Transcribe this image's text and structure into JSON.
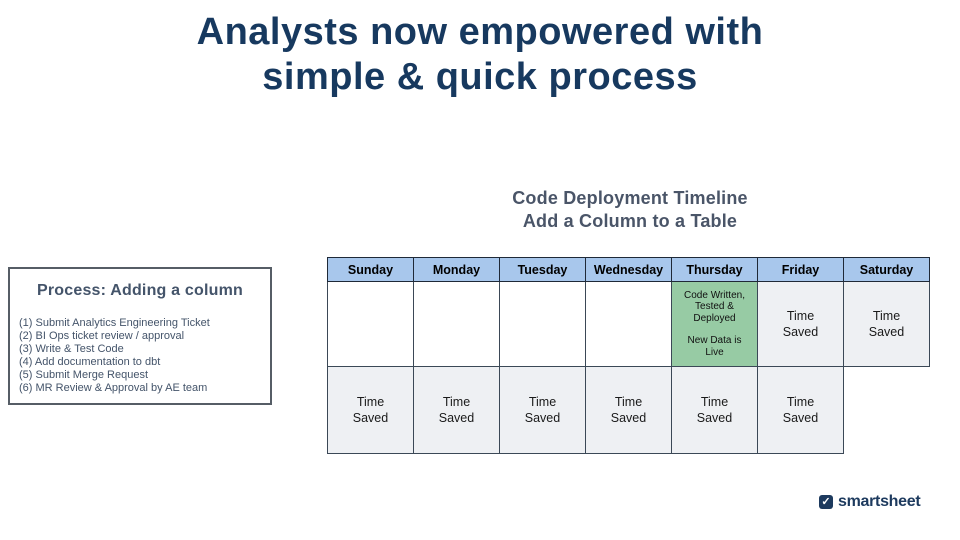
{
  "slide": {
    "title_lines": [
      "Analysts now empowered with",
      "simple & quick process"
    ],
    "subtitle_lines": [
      "Code Deployment Timeline",
      "Add a Column to a Table"
    ]
  },
  "process_box": {
    "title": "Process: Adding a column",
    "steps": [
      "(1) Submit Analytics Engineering Ticket",
      "(2) BI Ops ticket review / approval",
      "(3) Write & Test Code",
      "(4) Add documentation to dbt",
      "(5) Submit Merge Request",
      "(6) MR Review & Approval by AE team"
    ]
  },
  "calendar": {
    "header_days": [
      "Sunday",
      "Monday",
      "Tuesday",
      "Wednesday",
      "Thursday",
      "Friday",
      "Saturday"
    ],
    "row1": {
      "thursday_lines": [
        "Code Written, Tested & Deployed",
        "New Data is Live"
      ],
      "friday": "Time Saved",
      "saturday": "Time Saved"
    },
    "row2_cells": [
      "Time Saved",
      "Time Saved",
      "Time Saved",
      "Time Saved",
      "Time Saved",
      "Time Saved"
    ]
  },
  "logo": {
    "label": "smartsheet",
    "icon_glyph": "✓"
  },
  "colors": {
    "title_navy": "#17395f",
    "subtitle_slate": "#4a5568",
    "header_blue": "#a8c7ec",
    "highlight_green": "#97cba4",
    "saved_gray": "#eef0f3",
    "border_dark": "#3b4856",
    "logo_navy": "#1d3a5e"
  }
}
